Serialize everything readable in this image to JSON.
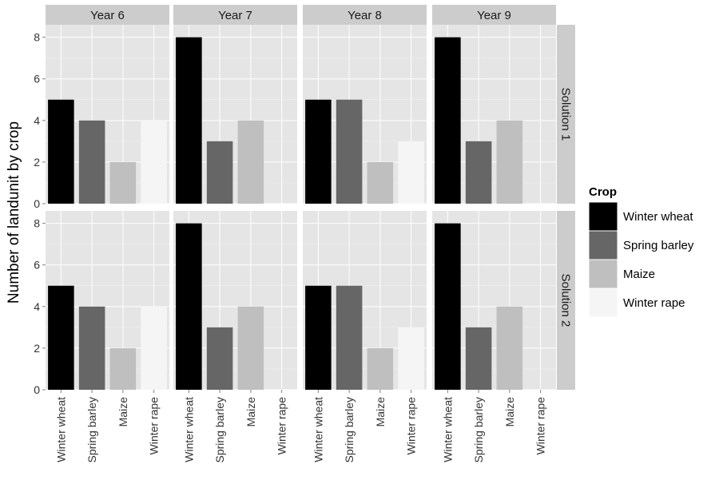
{
  "chart_data": {
    "type": "bar",
    "ylabel": "Number of landunit by crop",
    "xlabel": "",
    "ylim": [
      0,
      8.6
    ],
    "yticks": [
      0,
      2,
      4,
      6,
      8
    ],
    "grid": true,
    "legend_position": "right",
    "legend_title": "Crop",
    "categories": [
      "Winter wheat",
      "Spring barley",
      "Maize",
      "Winter rape"
    ],
    "colors": {
      "Winter wheat": "#000000",
      "Spring barley": "#666666",
      "Maize": "#bfbfbf",
      "Winter rape": "#f5f5f5"
    },
    "columns": [
      "Year 6",
      "Year 7",
      "Year 8",
      "Year 9"
    ],
    "rows": [
      "Solution 1",
      "Solution 2"
    ],
    "panels": [
      {
        "row": "Solution 1",
        "column": "Year 6",
        "values": [
          5,
          4,
          2,
          4
        ]
      },
      {
        "row": "Solution 1",
        "column": "Year 7",
        "values": [
          8,
          3,
          4,
          0
        ]
      },
      {
        "row": "Solution 1",
        "column": "Year 8",
        "values": [
          5,
          5,
          2,
          3
        ]
      },
      {
        "row": "Solution 1",
        "column": "Year 9",
        "values": [
          8,
          3,
          4,
          0
        ]
      },
      {
        "row": "Solution 2",
        "column": "Year 6",
        "values": [
          5,
          4,
          2,
          4
        ]
      },
      {
        "row": "Solution 2",
        "column": "Year 7",
        "values": [
          8,
          3,
          4,
          0
        ]
      },
      {
        "row": "Solution 2",
        "column": "Year 8",
        "values": [
          5,
          5,
          2,
          3
        ]
      },
      {
        "row": "Solution 2",
        "column": "Year 9",
        "values": [
          8,
          3,
          4,
          0
        ]
      }
    ]
  }
}
